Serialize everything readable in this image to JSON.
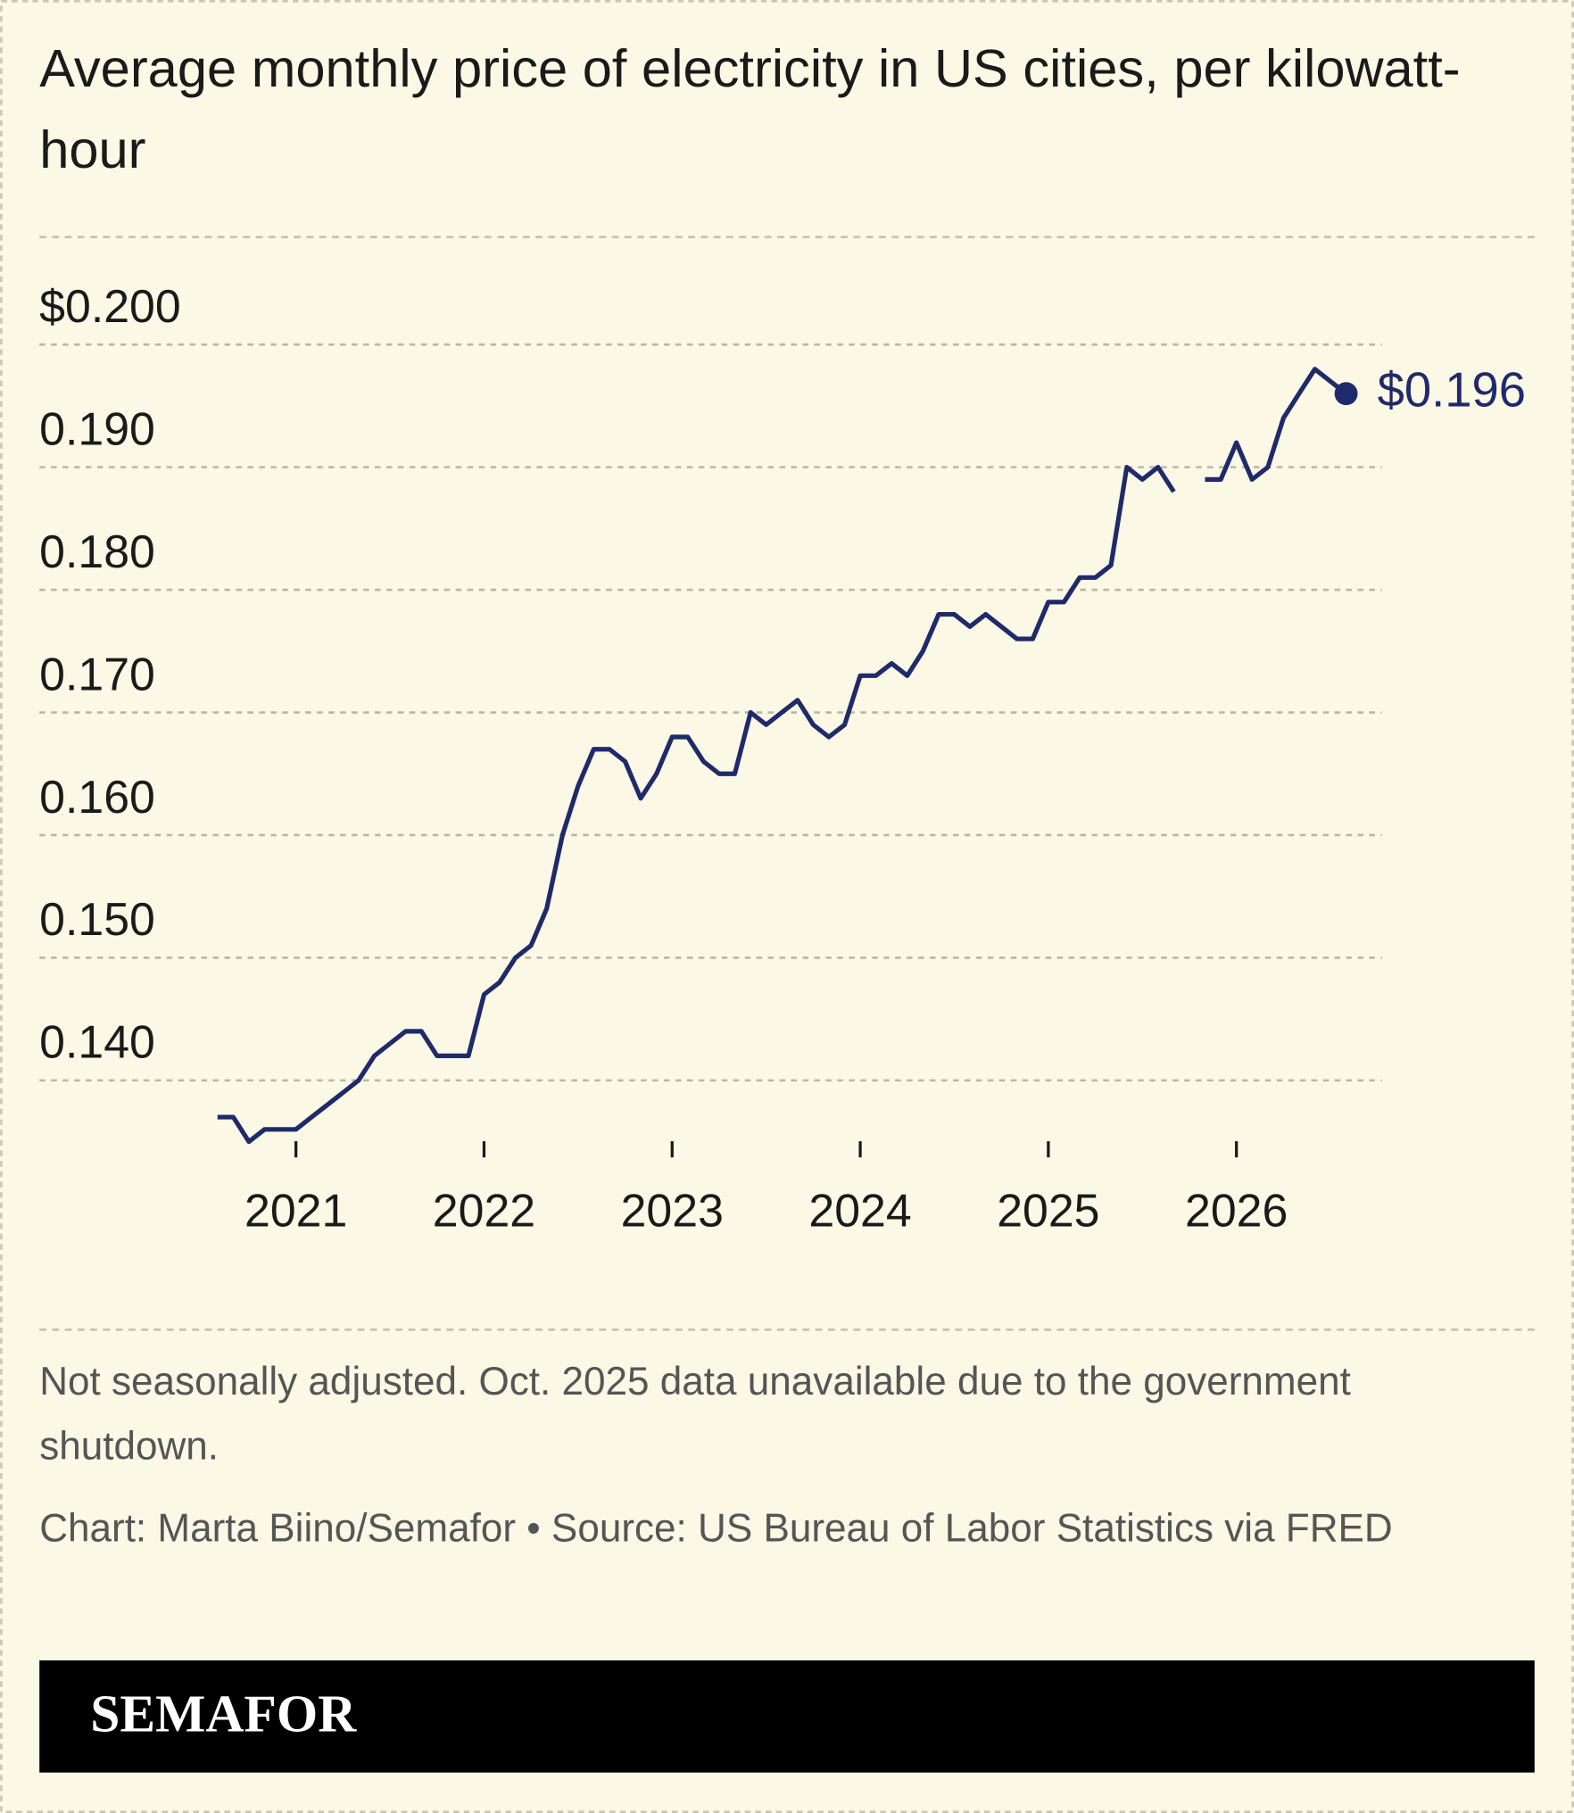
{
  "chart_data": {
    "type": "line",
    "title": "Average monthly price of electricity in US cities, per kilowatt-hour",
    "note": "Not seasonally adjusted. Oct. 2025 data unavailable due to the government shutdown.",
    "source": "Chart: Marta Biino/Semafor • Source: US Bureau of Labor Statistics via FRED",
    "brand": "SEMAFOR",
    "x": [
      2020.583,
      2020.667,
      2020.75,
      2020.833,
      2020.917,
      2021,
      2021.083,
      2021.167,
      2021.25,
      2021.333,
      2021.417,
      2021.5,
      2021.583,
      2021.667,
      2021.75,
      2021.833,
      2021.917,
      2022,
      2022.083,
      2022.167,
      2022.25,
      2022.333,
      2022.417,
      2022.5,
      2022.583,
      2022.667,
      2022.75,
      2022.833,
      2022.917,
      2023,
      2023.083,
      2023.167,
      2023.25,
      2023.333,
      2023.417,
      2023.5,
      2023.583,
      2023.667,
      2023.75,
      2023.833,
      2023.917,
      2024,
      2024.083,
      2024.167,
      2024.25,
      2024.333,
      2024.417,
      2024.5,
      2024.583,
      2024.667,
      2024.75,
      2024.833,
      2024.917,
      2025,
      2025.083,
      2025.167,
      2025.25,
      2025.333,
      2025.417,
      2025.5,
      2025.583,
      2025.667,
      2025.75,
      2025.833,
      2025.917,
      2026,
      2026.083,
      2026.167,
      2026.25,
      2026.333,
      2026.417,
      2026.5,
      2026.583
    ],
    "series": [
      {
        "color": "#1f2a6b",
        "last_value_label": "$0.196",
        "values": [
          0.137,
          0.137,
          0.135,
          0.136,
          0.136,
          0.136,
          0.137,
          0.138,
          0.139,
          0.14,
          0.142,
          0.143,
          0.144,
          0.144,
          0.142,
          0.142,
          0.142,
          0.147,
          0.148,
          0.15,
          0.151,
          0.154,
          0.16,
          0.164,
          0.167,
          0.167,
          0.166,
          0.163,
          0.165,
          0.168,
          0.168,
          0.166,
          0.165,
          0.165,
          0.17,
          0.169,
          0.17,
          0.171,
          0.169,
          0.168,
          0.169,
          0.173,
          0.173,
          0.174,
          0.173,
          0.175,
          0.178,
          0.178,
          0.177,
          0.178,
          0.177,
          0.176,
          0.176,
          0.179,
          0.179,
          0.181,
          0.181,
          0.182,
          0.19,
          0.189,
          0.19,
          0.188,
          null,
          0.189,
          0.189,
          0.192,
          0.189,
          0.19,
          0.194,
          0.196,
          0.198,
          0.197,
          0.196
        ]
      }
    ],
    "xlim": [
      2020.583,
      2026.583
    ],
    "xticks": [
      2021,
      2022,
      2023,
      2024,
      2025,
      2026
    ],
    "ylim": [
      0.134,
      0.2
    ],
    "yticks": [
      {
        "value": 0.14,
        "label": "0.140"
      },
      {
        "value": 0.15,
        "label": "0.150"
      },
      {
        "value": 0.16,
        "label": "0.160"
      },
      {
        "value": 0.17,
        "label": "0.170"
      },
      {
        "value": 0.18,
        "label": "0.180"
      },
      {
        "value": 0.19,
        "label": "0.190"
      },
      {
        "value": 0.2,
        "label": "$0.200"
      }
    ],
    "grid": true
  }
}
